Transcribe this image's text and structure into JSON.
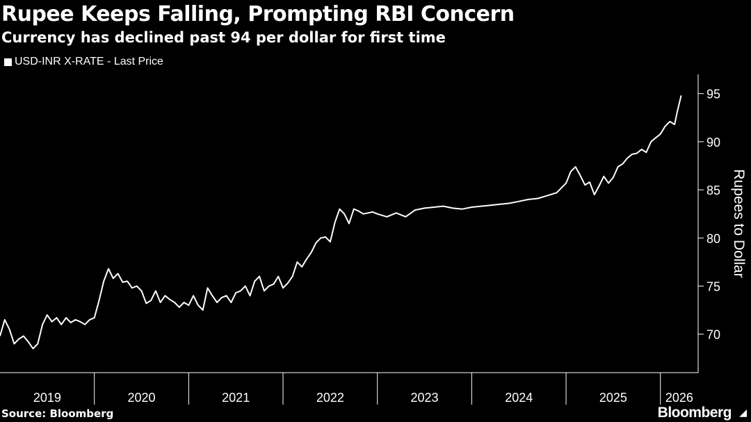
{
  "chart_data": {
    "type": "line",
    "title": "Rupee Keeps Falling, Prompting RBI Concern",
    "subtitle": "Currency has declined past 94 per dollar for first time",
    "ylabel": "Rupees to Dollar",
    "ylim": [
      66,
      97
    ],
    "yticks": [
      70,
      75,
      80,
      85,
      90,
      95
    ],
    "xlim": [
      2019.0,
      2026.4
    ],
    "xticks": [
      "2019",
      "2020",
      "2021",
      "2022",
      "2023",
      "2024",
      "2025",
      "2026"
    ],
    "grid": false,
    "legend_position": "top-left",
    "series": [
      {
        "name": "USD-INR X-RATE - Last Price",
        "color": "#ffffff",
        "x": [
          2019.0,
          2019.05,
          2019.1,
          2019.15,
          2019.2,
          2019.25,
          2019.3,
          2019.35,
          2019.4,
          2019.45,
          2019.5,
          2019.55,
          2019.6,
          2019.65,
          2019.7,
          2019.75,
          2019.8,
          2019.85,
          2019.9,
          2019.95,
          2020.0,
          2020.05,
          2020.1,
          2020.15,
          2020.2,
          2020.25,
          2020.3,
          2020.35,
          2020.4,
          2020.45,
          2020.5,
          2020.55,
          2020.6,
          2020.65,
          2020.7,
          2020.75,
          2020.8,
          2020.85,
          2020.9,
          2020.95,
          2021.0,
          2021.05,
          2021.1,
          2021.15,
          2021.2,
          2021.25,
          2021.3,
          2021.35,
          2021.4,
          2021.45,
          2021.5,
          2021.55,
          2021.6,
          2021.65,
          2021.7,
          2021.75,
          2021.8,
          2021.85,
          2021.9,
          2021.95,
          2022.0,
          2022.05,
          2022.1,
          2022.15,
          2022.2,
          2022.25,
          2022.3,
          2022.35,
          2022.4,
          2022.45,
          2022.5,
          2022.55,
          2022.6,
          2022.65,
          2022.7,
          2022.75,
          2022.8,
          2022.85,
          2022.9,
          2022.95,
          2023.0,
          2023.1,
          2023.2,
          2023.3,
          2023.4,
          2023.5,
          2023.6,
          2023.7,
          2023.8,
          2023.9,
          2024.0,
          2024.1,
          2024.2,
          2024.3,
          2024.4,
          2024.5,
          2024.6,
          2024.7,
          2024.8,
          2024.9,
          2025.0,
          2025.05,
          2025.1,
          2025.15,
          2025.2,
          2025.25,
          2025.3,
          2025.35,
          2025.4,
          2025.45,
          2025.5,
          2025.55,
          2025.6,
          2025.65,
          2025.7,
          2025.75,
          2025.8,
          2025.85,
          2025.9,
          2025.95,
          2026.0,
          2026.05,
          2026.1,
          2026.15,
          2026.18,
          2026.22
        ],
        "y": [
          69.8,
          71.5,
          70.5,
          69.0,
          69.5,
          69.8,
          69.2,
          68.5,
          69.0,
          71.0,
          72.0,
          71.3,
          71.7,
          71.0,
          71.7,
          71.2,
          71.5,
          71.3,
          71.0,
          71.5,
          71.7,
          73.5,
          75.5,
          76.8,
          75.8,
          76.3,
          75.4,
          75.5,
          74.8,
          75.0,
          74.5,
          73.2,
          73.5,
          74.5,
          73.3,
          74.0,
          73.6,
          73.3,
          72.8,
          73.3,
          73.0,
          74.0,
          73.0,
          72.5,
          74.8,
          74.0,
          73.3,
          73.8,
          74.0,
          73.3,
          74.3,
          74.5,
          75.0,
          74.0,
          75.5,
          76.0,
          74.5,
          75.0,
          75.2,
          76.0,
          74.8,
          75.3,
          76.0,
          77.5,
          77.0,
          77.8,
          78.5,
          79.5,
          80.0,
          80.1,
          79.6,
          81.6,
          83.0,
          82.5,
          81.5,
          83.0,
          82.8,
          82.5,
          82.6,
          82.7,
          82.5,
          82.2,
          82.6,
          82.2,
          82.9,
          83.1,
          83.2,
          83.3,
          83.1,
          83.0,
          83.2,
          83.3,
          83.4,
          83.5,
          83.6,
          83.8,
          84.0,
          84.1,
          84.4,
          84.7,
          85.7,
          86.9,
          87.4,
          86.5,
          85.5,
          85.8,
          84.5,
          85.4,
          86.4,
          85.7,
          86.3,
          87.4,
          87.7,
          88.3,
          88.7,
          88.8,
          89.2,
          88.9,
          90.0,
          90.4,
          90.8,
          91.6,
          92.1,
          91.8,
          93.2,
          94.8
        ]
      }
    ]
  },
  "source": "Source: Bloomberg",
  "brand": "Bloomberg",
  "brand_icon": "bloomberg-terminal-icon"
}
